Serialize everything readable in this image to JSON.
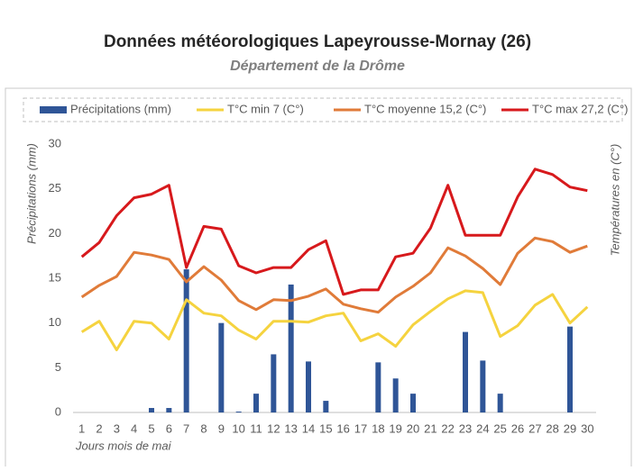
{
  "chart_data": {
    "type": "bar-line",
    "title": "Données météorologiques Lapeyrousse-Mornay (26)",
    "subtitle": "Département de la Drôme",
    "x_label": "Jours mois de mai",
    "y_label": "Précipitations (mm)",
    "y2_label": "Températures en (C°)",
    "categories": [
      "1",
      "2",
      "3",
      "4",
      "5",
      "6",
      "7",
      "8",
      "9",
      "10",
      "11",
      "12",
      "13",
      "14",
      "15",
      "16",
      "17",
      "18",
      "19",
      "20",
      "21",
      "22",
      "23",
      "24",
      "25",
      "26",
      "27",
      "28",
      "29",
      "30"
    ],
    "ylim": [
      0,
      30
    ],
    "yticks": [
      0,
      5,
      10,
      15,
      20,
      25,
      30
    ],
    "legend": "top",
    "series": [
      {
        "name": "Précipitations (mm)",
        "kind": "bar",
        "color": "#2f5597",
        "values": [
          0,
          0,
          0,
          0,
          0.5,
          0.5,
          16,
          0,
          10,
          0.1,
          2.1,
          6.5,
          14.3,
          5.7,
          1.3,
          0,
          0,
          5.6,
          3.8,
          2.1,
          0,
          0,
          9,
          5.8,
          2.1,
          0,
          0,
          0,
          9.6,
          0
        ]
      },
      {
        "name": "T°C min 7 (C°)",
        "kind": "line",
        "color": "#f5d33f",
        "values": [
          9,
          10.2,
          7,
          10.2,
          10,
          8.2,
          12.6,
          11.1,
          10.8,
          9.2,
          8.2,
          10.2,
          10.2,
          10.1,
          10.8,
          11.1,
          8,
          8.8,
          7.4,
          9.8,
          11.3,
          12.7,
          13.6,
          13.4,
          8.5,
          9.7,
          12,
          13.2,
          10,
          11.8
        ]
      },
      {
        "name": "T°C moyenne 15,2 (C°)",
        "kind": "line",
        "color": "#e07b39",
        "values": [
          12.9,
          14.2,
          15.2,
          17.9,
          17.6,
          17.1,
          14.6,
          16.3,
          14.8,
          12.5,
          11.5,
          12.6,
          12.5,
          13,
          13.8,
          12.1,
          11.6,
          11.2,
          12.9,
          14.1,
          15.6,
          18.4,
          17.5,
          16.1,
          14.3,
          17.8,
          19.5,
          19.1,
          17.9,
          18.6
        ]
      },
      {
        "name": "T°C max 27,2 (C°)",
        "kind": "line",
        "color": "#d7191c",
        "values": [
          17.4,
          19,
          22,
          24,
          24.4,
          25.4,
          16.2,
          20.8,
          20.5,
          16.4,
          15.6,
          16.2,
          16.2,
          18.2,
          19.2,
          13.2,
          13.7,
          13.7,
          17.4,
          17.8,
          20.6,
          25.4,
          19.8,
          19.8,
          19.8,
          24.1,
          27.2,
          26.6,
          25.2,
          24.8
        ]
      }
    ]
  }
}
